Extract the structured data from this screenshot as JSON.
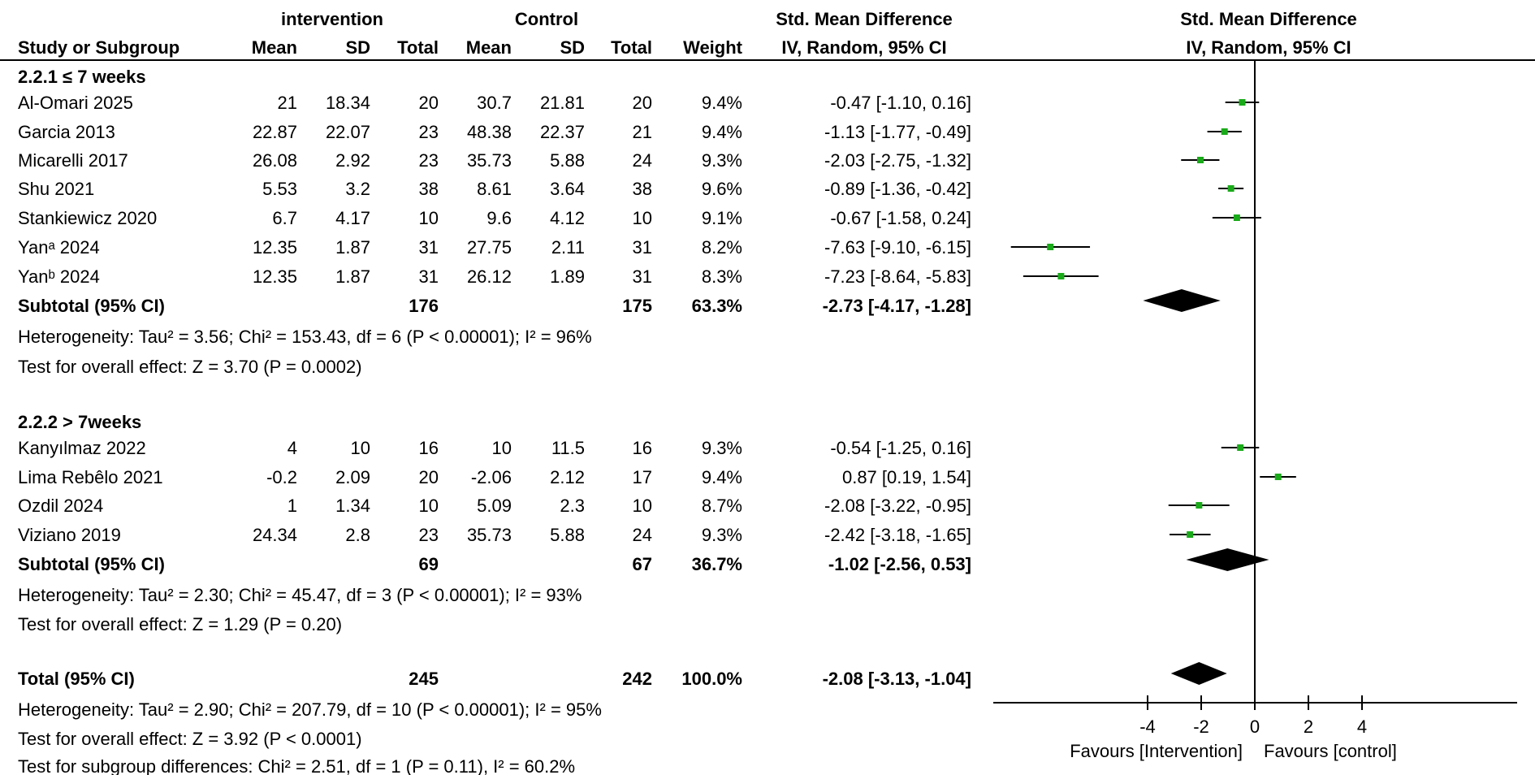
{
  "header": {
    "group1": "intervention",
    "group2": "Control",
    "effect_title": "Std. Mean Difference",
    "plot_title": "Std. Mean Difference",
    "col_study": "Study or Subgroup",
    "col_mean": "Mean",
    "col_sd": "SD",
    "col_total": "Total",
    "col_weight": "Weight",
    "col_ci": "IV, Random, 95% CI",
    "plot_subtitle": "IV, Random, 95% CI"
  },
  "subgroups": [
    {
      "label": "2.2.1 ≤ 7 weeks",
      "studies": [
        {
          "study": "Al-Omari 2025",
          "m1": "21",
          "sd1": "18.34",
          "n1": "20",
          "m2": "30.7",
          "sd2": "21.81",
          "n2": "20",
          "weight": "9.4%",
          "ci": "-0.47 [-1.10, 0.16]",
          "est": -0.47,
          "lo": -1.1,
          "hi": 0.16
        },
        {
          "study": "Garcia 2013",
          "m1": "22.87",
          "sd1": "22.07",
          "n1": "23",
          "m2": "48.38",
          "sd2": "22.37",
          "n2": "21",
          "weight": "9.4%",
          "ci": "-1.13 [-1.77, -0.49]",
          "est": -1.13,
          "lo": -1.77,
          "hi": -0.49
        },
        {
          "study": "Micarelli 2017",
          "m1": "26.08",
          "sd1": "2.92",
          "n1": "23",
          "m2": "35.73",
          "sd2": "5.88",
          "n2": "24",
          "weight": "9.3%",
          "ci": "-2.03 [-2.75, -1.32]",
          "est": -2.03,
          "lo": -2.75,
          "hi": -1.32
        },
        {
          "study": "Shu 2021",
          "m1": "5.53",
          "sd1": "3.2",
          "n1": "38",
          "m2": "8.61",
          "sd2": "3.64",
          "n2": "38",
          "weight": "9.6%",
          "ci": "-0.89 [-1.36, -0.42]",
          "est": -0.89,
          "lo": -1.36,
          "hi": -0.42
        },
        {
          "study": "Stankiewicz 2020",
          "m1": "6.7",
          "sd1": "4.17",
          "n1": "10",
          "m2": "9.6",
          "sd2": "4.12",
          "n2": "10",
          "weight": "9.1%",
          "ci": "-0.67 [-1.58, 0.24]",
          "est": -0.67,
          "lo": -1.58,
          "hi": 0.24
        },
        {
          "study": "Yanᵃ 2024",
          "m1": "12.35",
          "sd1": "1.87",
          "n1": "31",
          "m2": "27.75",
          "sd2": "2.11",
          "n2": "31",
          "weight": "8.2%",
          "ci": "-7.63 [-9.10, -6.15]",
          "est": -7.63,
          "lo": -9.1,
          "hi": -6.15
        },
        {
          "study": "Yanᵇ 2024",
          "m1": "12.35",
          "sd1": "1.87",
          "n1": "31",
          "m2": "26.12",
          "sd2": "1.89",
          "n2": "31",
          "weight": "8.3%",
          "ci": "-7.23 [-8.64, -5.83]",
          "est": -7.23,
          "lo": -8.64,
          "hi": -5.83
        }
      ],
      "subtotal": {
        "label": "Subtotal (95% CI)",
        "n1": "176",
        "n2": "175",
        "weight": "63.3%",
        "ci": "-2.73 [-4.17, -1.28]",
        "est": -2.73,
        "lo": -4.17,
        "hi": -1.28
      },
      "heterogeneity": "Heterogeneity: Tau² = 3.56; Chi² = 153.43, df = 6 (P < 0.00001); I² = 96%",
      "overall": "Test for overall effect: Z = 3.70 (P = 0.0002)"
    },
    {
      "label": "2.2.2 > 7weeks",
      "studies": [
        {
          "study": "Kanyılmaz 2022",
          "m1": "4",
          "sd1": "10",
          "n1": "16",
          "m2": "10",
          "sd2": "11.5",
          "n2": "16",
          "weight": "9.3%",
          "ci": "-0.54 [-1.25, 0.16]",
          "est": -0.54,
          "lo": -1.25,
          "hi": 0.16
        },
        {
          "study": "Lima Rebêlo 2021",
          "m1": "-0.2",
          "sd1": "2.09",
          "n1": "20",
          "m2": "-2.06",
          "sd2": "2.12",
          "n2": "17",
          "weight": "9.4%",
          "ci": "0.87 [0.19, 1.54]",
          "est": 0.87,
          "lo": 0.19,
          "hi": 1.54
        },
        {
          "study": "Ozdil 2024",
          "m1": "1",
          "sd1": "1.34",
          "n1": "10",
          "m2": "5.09",
          "sd2": "2.3",
          "n2": "10",
          "weight": "8.7%",
          "ci": "-2.08 [-3.22, -0.95]",
          "est": -2.08,
          "lo": -3.22,
          "hi": -0.95
        },
        {
          "study": "Viziano 2019",
          "m1": "24.34",
          "sd1": "2.8",
          "n1": "23",
          "m2": "35.73",
          "sd2": "5.88",
          "n2": "24",
          "weight": "9.3%",
          "ci": "-2.42 [-3.18, -1.65]",
          "est": -2.42,
          "lo": -3.18,
          "hi": -1.65
        }
      ],
      "subtotal": {
        "label": "Subtotal (95% CI)",
        "n1": "69",
        "n2": "67",
        "weight": "36.7%",
        "ci": "-1.02 [-2.56, 0.53]",
        "est": -1.02,
        "lo": -2.56,
        "hi": 0.53
      },
      "heterogeneity": "Heterogeneity: Tau² = 2.30; Chi² = 45.47, df = 3 (P < 0.00001); I² = 93%",
      "overall": "Test for overall effect: Z = 1.29 (P = 0.20)"
    }
  ],
  "total": {
    "label": "Total (95% CI)",
    "n1": "245",
    "n2": "242",
    "weight": "100.0%",
    "ci": "-2.08 [-3.13, -1.04]",
    "est": -2.08,
    "lo": -3.13,
    "hi": -1.04,
    "heterogeneity": "Heterogeneity: Tau² = 2.90; Chi² = 207.79, df = 10 (P < 0.00001); I² = 95%",
    "overall": "Test for overall effect: Z = 3.92 (P < 0.0001)",
    "subgroup_diff": "Test for subgroup differences: Chi² = 2.51, df = 1 (P = 0.11), I² = 60.2%"
  },
  "chart_data": {
    "type": "forest",
    "measure": "Std. Mean Difference",
    "model": "IV, Random, 95% CI",
    "x_ticks": [
      "-4",
      "-2",
      "0",
      "2",
      "4"
    ],
    "x_tick_values": [
      -4,
      -2,
      0,
      2,
      4
    ],
    "x_range": [
      -10.5,
      10.5
    ],
    "favours_left": "Favours [Intervention]",
    "favours_right": "Favours [control]",
    "point_color": "#1aaa1a"
  }
}
